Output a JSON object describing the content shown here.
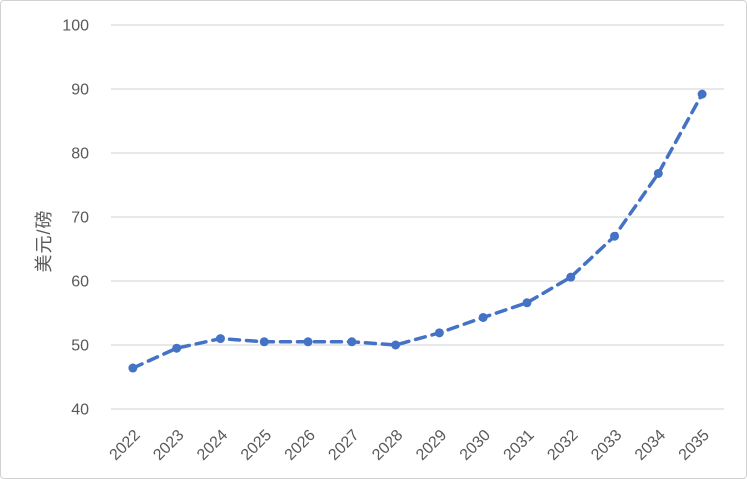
{
  "chart_data": {
    "type": "line",
    "title": "",
    "xlabel": "",
    "ylabel": "美元/磅",
    "categories": [
      "2022",
      "2023",
      "2024",
      "2025",
      "2026",
      "2027",
      "2028",
      "2029",
      "2030",
      "2031",
      "2032",
      "2033",
      "2034",
      "2035"
    ],
    "series": [
      {
        "name": "",
        "values": [
          46.4,
          49.5,
          51.0,
          50.5,
          50.5,
          50.5,
          50.0,
          51.9,
          54.3,
          56.6,
          60.6,
          67.0,
          76.8,
          89.2
        ]
      }
    ],
    "ylim": [
      40,
      100
    ],
    "yticks": [
      40,
      50,
      60,
      70,
      80,
      90,
      100
    ],
    "grid": true,
    "legend": false,
    "line_style": "dashed",
    "marker": "circle",
    "x_tick_rotation": -45
  },
  "theme": {
    "line_color": "#4472C4",
    "gridline_color": "#D9D9D9",
    "axis_text_color": "#595959",
    "background_color": "#FFFFFF",
    "border_color": "#D2D2D2"
  }
}
